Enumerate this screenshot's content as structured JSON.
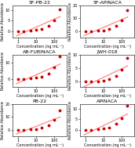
{
  "chart_data": [
    {
      "type": "scatter",
      "title": "5F-PB-22",
      "x_label": "Concentration (ng mL⁻¹)",
      "y_label": "Relative Abundance",
      "log": "x",
      "xlim": [
        0.5,
        500
      ],
      "xticks": [
        1,
        10,
        100
      ],
      "ylim": [
        -3,
        12
      ],
      "yticks": [
        0,
        5,
        10
      ],
      "grid": false,
      "series": [
        {
          "type": "line",
          "x": [
            0.8,
            220
          ],
          "values": [
            -2.1386,
            6.8691
          ],
          "color": "#ff6666",
          "line_style": "solid"
        },
        {
          "type": "scatter",
          "x": [
            1,
            2,
            5,
            10,
            20,
            50,
            100,
            200
          ],
          "values": [
            0.05,
            0.12,
            0.28,
            0.55,
            1.1,
            2.6,
            5.2,
            10.2
          ],
          "color": "#cc0000",
          "marker": "o"
        }
      ]
    },
    {
      "type": "scatter",
      "title": "5F-APINACA",
      "x_label": "Concentration (ng mL⁻¹)",
      "y_label": "Relative Abundance",
      "log": "x",
      "xlim": [
        0.5,
        500
      ],
      "xticks": [
        1,
        10,
        100
      ],
      "ylim": [
        -5,
        20
      ],
      "yticks": [
        0,
        10,
        20
      ],
      "grid": false,
      "series": [
        {
          "type": "line",
          "x": [
            0.8,
            220
          ],
          "values": [
            -3.4855,
            11.0915
          ],
          "color": "#ff6666",
          "line_style": "solid"
        },
        {
          "type": "scatter",
          "x": [
            1,
            2,
            5,
            10,
            20,
            50,
            100,
            200
          ],
          "values": [
            0.08,
            0.18,
            0.42,
            0.85,
            1.7,
            4.2,
            8.4,
            16.5
          ],
          "color": "#cc0000",
          "marker": "o"
        }
      ]
    },
    {
      "type": "scatter",
      "title": "AB-FUBINACA",
      "x_label": "Concentration (ng mL⁻¹)",
      "y_label": "Relative Abundance",
      "log": "x",
      "xlim": [
        0.5,
        500
      ],
      "xticks": [
        1,
        10,
        100
      ],
      "ylim": [
        -5,
        15
      ],
      "yticks": [
        0,
        10
      ],
      "grid": false,
      "series": [
        {
          "type": "line",
          "x": [
            0.8,
            220
          ],
          "values": [
            -2.96,
            9.3452
          ],
          "color": "#ff6666",
          "line_style": "solid"
        },
        {
          "type": "scatter",
          "x": [
            1,
            2,
            5,
            10,
            20,
            50,
            100,
            200
          ],
          "values": [
            0.06,
            0.14,
            0.35,
            0.7,
            1.4,
            3.5,
            7.0,
            14.0
          ],
          "color": "#cc0000",
          "marker": "o"
        }
      ]
    },
    {
      "type": "scatter",
      "title": "JWH-018",
      "x_label": "Concentration (ng mL⁻¹)",
      "y_label": "Relative Abundance",
      "log": "x",
      "xlim": [
        0.5,
        500
      ],
      "xticks": [
        1,
        10,
        100
      ],
      "ylim": [
        -2,
        10
      ],
      "yticks": [
        0,
        5,
        10
      ],
      "grid": false,
      "series": [
        {
          "type": "line",
          "x": [
            0.8,
            220
          ],
          "values": [
            -1.8738,
            5.9191
          ],
          "color": "#ff6666",
          "line_style": "solid"
        },
        {
          "type": "scatter",
          "x": [
            1,
            2,
            5,
            10,
            20,
            50,
            100,
            200
          ],
          "values": [
            0.04,
            0.09,
            0.22,
            0.45,
            0.9,
            2.2,
            4.4,
            8.9
          ],
          "color": "#cc0000",
          "marker": "o"
        }
      ]
    },
    {
      "type": "scatter",
      "title": "PB-22",
      "x_label": "Concentration (ng mL⁻¹)",
      "y_label": "Relative Abundance",
      "log": "x",
      "xlim": [
        0.5,
        500
      ],
      "xticks": [
        1,
        10,
        100
      ],
      "ylim": [
        -5,
        20
      ],
      "yticks": [
        0,
        10,
        20
      ],
      "grid": false,
      "series": [
        {
          "type": "line",
          "x": [
            0.8,
            220
          ],
          "values": [
            -3.2087,
            10.1447
          ],
          "color": "#ff6666",
          "line_style": "solid"
        },
        {
          "type": "scatter",
          "x": [
            1,
            2,
            5,
            10,
            20,
            50,
            100,
            200
          ],
          "values": [
            0.07,
            0.16,
            0.38,
            0.76,
            1.52,
            3.8,
            7.6,
            15.2
          ],
          "color": "#cc0000",
          "marker": "o"
        }
      ]
    },
    {
      "type": "scatter",
      "title": "APINACA",
      "x_label": "Concentration (ng mL⁻¹)",
      "y_label": "Relative Abundance",
      "log": "x",
      "xlim": [
        0.5,
        500
      ],
      "xticks": [
        1,
        10,
        100
      ],
      "ylim": [
        -3,
        12
      ],
      "yticks": [
        0,
        5,
        10
      ],
      "grid": false,
      "series": [
        {
          "type": "line",
          "x": [
            0.8,
            220
          ],
          "values": [
            -2.3679,
            7.476
          ],
          "color": "#ff6666",
          "line_style": "solid"
        },
        {
          "type": "scatter",
          "x": [
            1,
            2,
            5,
            10,
            20,
            50,
            100,
            200
          ],
          "values": [
            0.05,
            0.11,
            0.28,
            0.56,
            1.12,
            2.8,
            5.6,
            11.2
          ],
          "color": "#cc0000",
          "marker": "o"
        }
      ]
    }
  ]
}
